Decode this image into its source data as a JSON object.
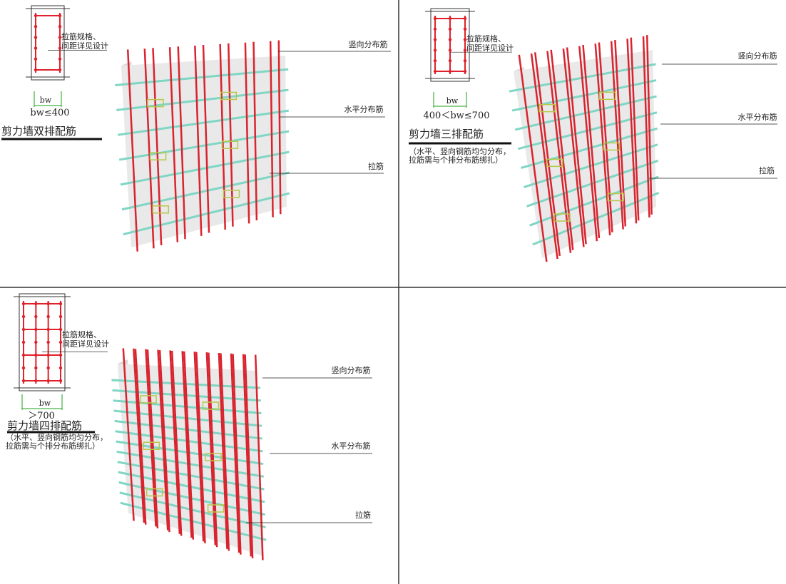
{
  "panels": [
    {
      "section": {
        "tie_note": [
          "拉筋规格、",
          "间距详见设计"
        ],
        "width_label": "bw",
        "condition": "bw≤400"
      },
      "title": "剪力墙双排配筋",
      "callouts": [
        "竖向分布筋",
        "水平分布筋",
        "拉筋"
      ]
    },
    {
      "section": {
        "tie_note": [
          "拉筋规格、",
          "间距详见设计"
        ],
        "width_label": "bw",
        "condition": "400＜bw≤700"
      },
      "title": "剪力墙三排配筋",
      "note": [
        "（水平、竖向钢筋均匀分布，",
        "拉筋需与个排分布筋绑扎）"
      ],
      "callouts": [
        "竖向分布筋",
        "水平分布筋",
        "拉筋"
      ]
    },
    {
      "section": {
        "tie_note": [
          "拉筋规格、",
          "间距详见设计"
        ],
        "width_label": "bw",
        "condition": "＞700"
      },
      "title": "剪力墙四排配筋",
      "note": [
        "（水平、竖向钢筋均匀分布，",
        "拉筋需与个排分布筋绑扎）"
      ],
      "callouts": [
        "竖向分布筋",
        "水平分布筋",
        "拉筋"
      ]
    }
  ]
}
